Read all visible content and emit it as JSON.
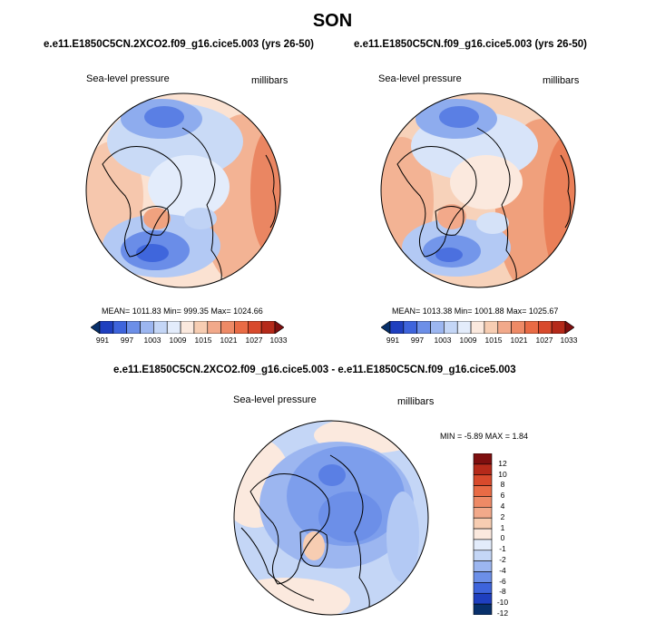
{
  "chart_data": {
    "type": "polar-contour-map",
    "title": "SON",
    "maps": [
      {
        "title": "e.e11.E1850C5CN.2XCO2.f09_g16.cice5.003 (yrs 26-50)",
        "left_label": "Sea-level pressure",
        "right_label": "millibars",
        "stats": "MEAN= 1011.83   Min= 999.35   Max= 1024.66",
        "colorbar_ticks": [
          "991",
          "997",
          "1003",
          "1009",
          "1015",
          "1021",
          "1027",
          "1033"
        ]
      },
      {
        "title": "e.e11.E1850C5CN.f09_g16.cice5.003 (yrs 26-50)",
        "left_label": "Sea-level pressure",
        "right_label": "millibars",
        "stats": "MEAN= 1013.38   Min= 1001.88   Max= 1025.67",
        "colorbar_ticks": [
          "991",
          "997",
          "1003",
          "1009",
          "1015",
          "1021",
          "1027",
          "1033"
        ]
      }
    ],
    "difference": {
      "title": "e.e11.E1850C5CN.2XCO2.f09_g16.cice5.003 - e.e11.E1850C5CN.f09_g16.cice5.003",
      "left_label": "Sea-level pressure",
      "right_label": "millibars",
      "stats": "MIN =  -5.89 MAX =   1.84",
      "colorbar_ticks": [
        "12",
        "10",
        "8",
        "6",
        "4",
        "2",
        "1",
        "0",
        "-1",
        "-2",
        "-4",
        "-6",
        "-8",
        "-10",
        "-12"
      ]
    },
    "colors": {
      "abs_scale": [
        "#08306b",
        "#1f3fbf",
        "#3e64dc",
        "#6c8fe8",
        "#9cb6f0",
        "#c4d6f6",
        "#e3ecfb",
        "#fbe9de",
        "#f7cdb2",
        "#f2a98a",
        "#ee8a66",
        "#e96b45",
        "#d84a2c",
        "#b52a1a",
        "#7e0f0f"
      ],
      "diff_scale": [
        "#08306b",
        "#1f3fbf",
        "#3e64dc",
        "#6c8fe8",
        "#9cb6f0",
        "#c4d6f6",
        "#e3ecfb",
        "#fbe9de",
        "#f7cdb2",
        "#f2a98a",
        "#ee8a66",
        "#e96b45",
        "#d84a2c",
        "#b52a1a",
        "#7e0f0f"
      ]
    }
  }
}
